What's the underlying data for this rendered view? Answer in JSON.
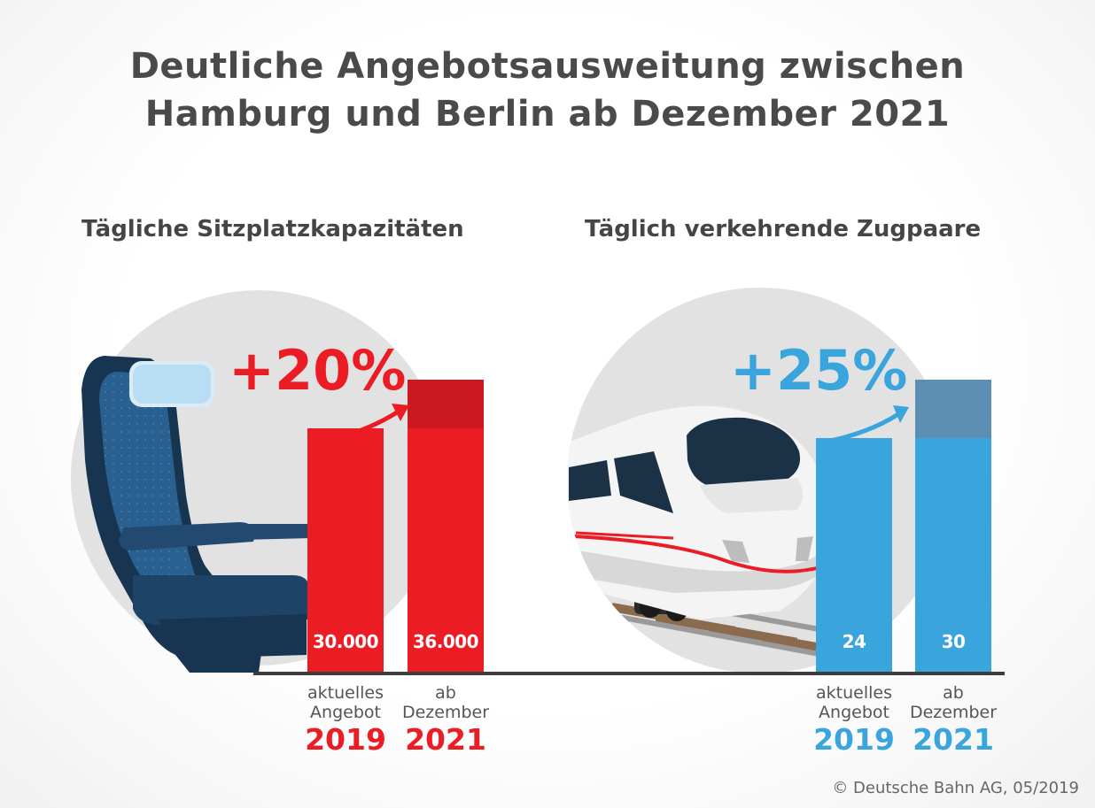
{
  "title_line1": "Deutliche Angebotsausweitung zwischen",
  "title_line2": "Hamburg und Berlin ab Dezember 2021",
  "copyright": "© Deutsche Bahn AG, 05/2019",
  "colors": {
    "red": "#ec1c24",
    "dark_red": "#cc1820",
    "blue": "#3aa5dc",
    "steel_blue": "#5b90b4",
    "title_gray": "#4a4a4a"
  },
  "chart_data": [
    {
      "type": "bar",
      "title": "Tägliche Sitzplatzkapazitäten",
      "increase_label": "+20%",
      "categories": [
        {
          "label_line1": "aktuelles",
          "label_line2": "Angebot",
          "year": "2019"
        },
        {
          "label_line1": "ab",
          "label_line2": "Dezember",
          "year": "2021"
        }
      ],
      "values": [
        30000,
        36000
      ],
      "value_labels": [
        "30.000",
        "36.000"
      ],
      "ylim": [
        0,
        36000
      ],
      "illustration": "seat-icon"
    },
    {
      "type": "bar",
      "title": "Täglich verkehrende Zugpaare",
      "increase_label": "+25%",
      "categories": [
        {
          "label_line1": "aktuelles",
          "label_line2": "Angebot",
          "year": "2019"
        },
        {
          "label_line1": "ab",
          "label_line2": "Dezember",
          "year": "2021"
        }
      ],
      "values": [
        24,
        30
      ],
      "value_labels": [
        "24",
        "30"
      ],
      "ylim": [
        0,
        30
      ],
      "illustration": "train-icon"
    }
  ]
}
